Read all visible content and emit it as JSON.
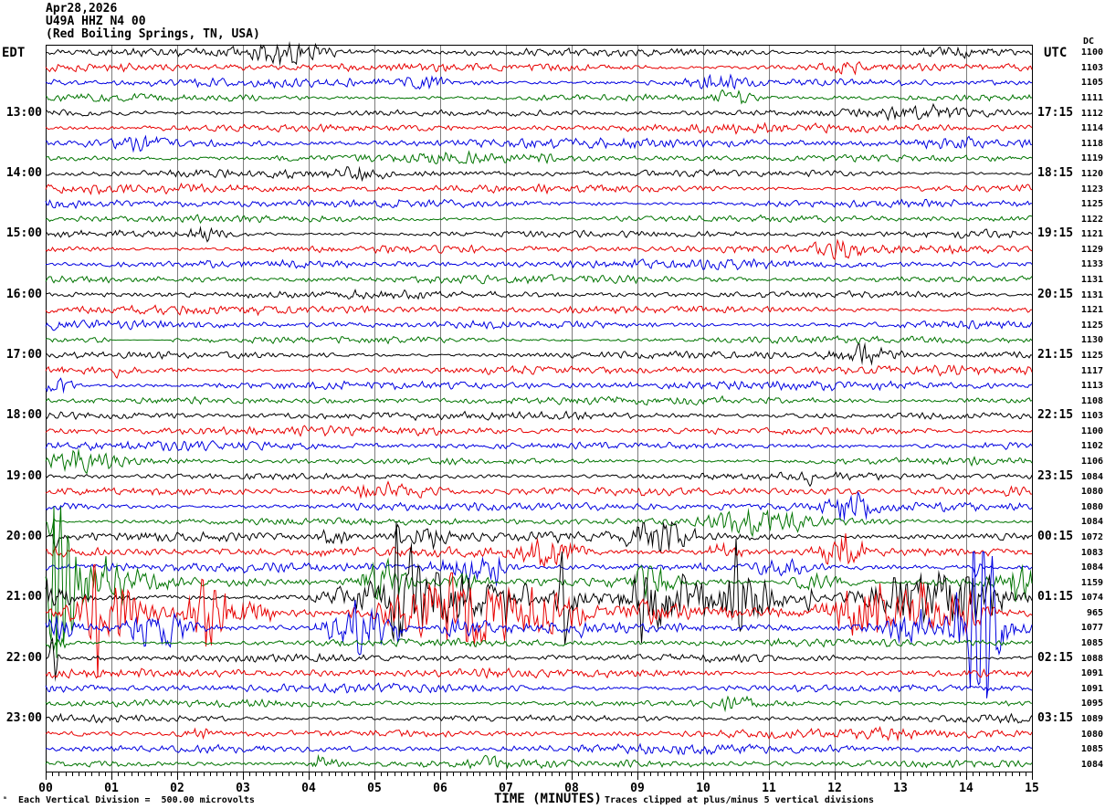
{
  "title": {
    "date": "Apr28,2026",
    "station": "U49A HHZ N4 00",
    "location": "(Red Boiling Springs, TN, USA)"
  },
  "header": {
    "left_tz": "EDT",
    "right_tz": "UTC",
    "dc_label": "DC"
  },
  "footer": {
    "scale_note": "Each Vertical Division =  500.00 microvolts",
    "axis_title": "TIME (MINUTES)",
    "clip_note": "Traces clipped at plus/minus 5 vertical divisions",
    "corner_mark": "ₘ"
  },
  "x_axis": {
    "labels": [
      "00",
      "01",
      "02",
      "03",
      "04",
      "05",
      "06",
      "07",
      "08",
      "09",
      "10",
      "11",
      "12",
      "13",
      "14",
      "15"
    ],
    "minutes": 15,
    "minor_per_major": 10,
    "title": "TIME (MINUTES)"
  },
  "colors": {
    "trace_cycle": [
      "#000000",
      "#e80000",
      "#0000e0",
      "#007400"
    ],
    "grid": "#7d7d7d",
    "border": "#000000",
    "background": "#ffffff"
  },
  "chart_data": {
    "type": "line",
    "kind": "seismogram-helicorder",
    "x_range_minutes": [
      0,
      15
    ],
    "minutes_per_line": 15,
    "rows_count": 48,
    "clip_divisions": 5,
    "microvolts_per_division": 500.0,
    "rows": [
      {
        "dc": 1100,
        "bursts": [
          [
            3.6,
            0.4,
            7
          ],
          [
            13.8,
            0.4,
            3
          ]
        ]
      },
      {
        "dc": 1103,
        "bursts": [
          [
            12.2,
            0.3,
            3.5
          ]
        ]
      },
      {
        "dc": 1105,
        "bursts": [
          [
            5.8,
            0.2,
            4
          ],
          [
            10.2,
            0.25,
            4
          ]
        ]
      },
      {
        "dc": 1111,
        "bursts": [
          [
            10.45,
            0.2,
            5
          ]
        ]
      },
      {
        "dc": 1112,
        "edt": "13:00",
        "utc": "17:15",
        "bursts": [
          [
            13.3,
            0.5,
            3
          ]
        ]
      },
      {
        "dc": 1114
      },
      {
        "dc": 1118,
        "bursts": [
          [
            1.4,
            0.25,
            4
          ],
          [
            13.7,
            0.3,
            3
          ]
        ]
      },
      {
        "dc": 1119,
        "bursts": [
          [
            6.5,
            0.8,
            1.5
          ]
        ]
      },
      {
        "dc": 1120,
        "edt": "14:00",
        "utc": "18:15",
        "bursts": [
          [
            4.8,
            0.25,
            3
          ]
        ]
      },
      {
        "dc": 1123
      },
      {
        "dc": 1125
      },
      {
        "dc": 1122
      },
      {
        "dc": 1121,
        "edt": "15:00",
        "utc": "19:15",
        "bursts": [
          [
            2.45,
            0.2,
            4
          ]
        ]
      },
      {
        "dc": 1129,
        "bursts": [
          [
            12.15,
            0.25,
            5
          ]
        ]
      },
      {
        "dc": 1133
      },
      {
        "dc": 1131
      },
      {
        "dc": 1131,
        "edt": "16:00",
        "utc": "20:15"
      },
      {
        "dc": 1121
      },
      {
        "dc": 1125
      },
      {
        "dc": 1130,
        "flat": [
          [
            1.0,
            1.9
          ]
        ]
      },
      {
        "dc": 1125,
        "edt": "17:00",
        "utc": "21:15",
        "bursts": [
          [
            12.4,
            0.35,
            6
          ]
        ]
      },
      {
        "dc": 1117,
        "spikes": [
          [
            1.07,
            8
          ]
        ]
      },
      {
        "dc": 1113,
        "bursts": [
          [
            0.2,
            0.15,
            5
          ]
        ]
      },
      {
        "dc": 1108
      },
      {
        "dc": 1103,
        "edt": "18:00",
        "utc": "22:15"
      },
      {
        "dc": 1100
      },
      {
        "dc": 1102
      },
      {
        "dc": 1106,
        "bursts": [
          [
            0.5,
            0.5,
            5
          ]
        ]
      },
      {
        "dc": 1084,
        "edt": "19:00",
        "utc": "23:15",
        "spikes": [
          [
            11.62,
            10
          ]
        ]
      },
      {
        "dc": 1080,
        "bursts": [
          [
            5.2,
            0.5,
            5
          ]
        ]
      },
      {
        "dc": 1080,
        "bursts": [
          [
            12.3,
            0.3,
            7
          ]
        ]
      },
      {
        "dc": 1084,
        "bursts": [
          [
            10.6,
            0.3,
            7
          ],
          [
            11.3,
            0.3,
            4
          ]
        ],
        "spikes": [
          [
            0.07,
            18
          ]
        ]
      },
      {
        "dc": 1072,
        "edt": "20:00",
        "utc": "00:15",
        "base": 3,
        "bursts": [
          [
            4.4,
            0.15,
            5
          ],
          [
            5.9,
            0.2,
            6
          ],
          [
            9.3,
            0.35,
            8
          ]
        ],
        "spikes": [
          [
            0.15,
            14
          ],
          [
            5.35,
            -16
          ],
          [
            5.6,
            12
          ],
          [
            9.1,
            -14
          ]
        ]
      },
      {
        "dc": 1083,
        "base": 3,
        "bursts": [
          [
            7.6,
            0.3,
            8
          ],
          [
            10.3,
            0.2,
            5
          ],
          [
            12.1,
            0.2,
            12
          ]
        ],
        "spikes": [
          [
            12.05,
            20
          ]
        ]
      },
      {
        "dc": 1084,
        "base": 3,
        "bursts": [
          [
            6.5,
            0.35,
            8
          ],
          [
            11.2,
            0.25,
            5
          ]
        ],
        "spikes": [
          [
            6.85,
            14
          ],
          [
            14.15,
            12
          ]
        ]
      },
      {
        "dc": 1159,
        "base": 3,
        "bursts": [
          [
            0.7,
            0.5,
            15
          ],
          [
            5.15,
            0.25,
            14
          ],
          [
            6.4,
            0.2,
            6
          ],
          [
            9.2,
            0.25,
            9
          ],
          [
            11.75,
            0.25,
            6
          ],
          [
            14.78,
            0.15,
            12
          ]
        ],
        "spikes": [
          [
            0.08,
            82
          ],
          [
            0.12,
            -82
          ],
          [
            0.17,
            80
          ],
          [
            0.22,
            -82
          ],
          [
            0.28,
            66
          ],
          [
            0.33,
            -50
          ],
          [
            0.4,
            30
          ]
        ]
      },
      {
        "dc": 1074,
        "edt": "21:00",
        "utc": "01:15",
        "base": 3,
        "bursts": [
          [
            0.1,
            0.15,
            10
          ],
          [
            4.45,
            0.2,
            6
          ],
          [
            5.6,
            0.5,
            16
          ],
          [
            6.4,
            0.5,
            8
          ],
          [
            8.0,
            0.25,
            10
          ],
          [
            9.2,
            0.35,
            20
          ],
          [
            9.9,
            0.5,
            7
          ],
          [
            10.7,
            0.3,
            12
          ],
          [
            12.9,
            0.3,
            10
          ],
          [
            13.6,
            0.4,
            12
          ],
          [
            14.2,
            0.3,
            14
          ]
        ],
        "spikes": [
          [
            5.28,
            82
          ],
          [
            5.33,
            -82
          ],
          [
            5.42,
            40
          ],
          [
            5.55,
            -45
          ],
          [
            7.0,
            25
          ],
          [
            7.3,
            -15
          ],
          [
            7.85,
            -65
          ],
          [
            7.9,
            30
          ],
          [
            9.05,
            45
          ],
          [
            10.5,
            -70
          ],
          [
            10.56,
            35
          ],
          [
            11.6,
            18
          ],
          [
            14.25,
            -30
          ]
        ]
      },
      {
        "dc": 965,
        "base": 3.2,
        "bursts": [
          [
            0.95,
            0.4,
            20
          ],
          [
            2.45,
            0.2,
            22
          ],
          [
            3.0,
            0.3,
            8
          ],
          [
            5.9,
            0.5,
            25
          ],
          [
            6.8,
            0.4,
            12
          ],
          [
            7.6,
            0.4,
            15
          ],
          [
            9.2,
            0.3,
            6
          ],
          [
            12.5,
            0.4,
            18
          ],
          [
            13.4,
            0.25,
            15
          ],
          [
            14.0,
            0.2,
            10
          ]
        ],
        "spikes": [
          [
            0.7,
            50
          ],
          [
            0.73,
            -82
          ],
          [
            0.78,
            35
          ],
          [
            2.5,
            35
          ],
          [
            5.62,
            -45
          ],
          [
            6.35,
            -30
          ],
          [
            7.45,
            -25
          ],
          [
            12.6,
            -35
          ],
          [
            13.35,
            -30
          ]
        ]
      },
      {
        "dc": 1077,
        "base": 3,
        "bursts": [
          [
            0.2,
            0.15,
            6
          ],
          [
            1.7,
            0.3,
            12
          ],
          [
            4.75,
            0.35,
            16
          ],
          [
            6.4,
            0.25,
            5
          ],
          [
            13.15,
            0.3,
            12
          ],
          [
            14.25,
            0.25,
            30
          ]
        ],
        "spikes": [
          [
            5.35,
            12
          ],
          [
            8.15,
            10
          ],
          [
            13.85,
            -25
          ],
          [
            14.05,
            70
          ],
          [
            14.12,
            -82
          ],
          [
            14.2,
            82
          ],
          [
            14.27,
            -82
          ],
          [
            14.33,
            75
          ],
          [
            14.4,
            -55
          ],
          [
            14.48,
            35
          ]
        ]
      },
      {
        "dc": 1085,
        "bursts": [
          [
            0.15,
            0.1,
            5
          ]
        ]
      },
      {
        "dc": 1088,
        "edt": "22:00",
        "utc": "02:15",
        "spikes": [
          [
            0.1,
            -28
          ],
          [
            0.14,
            16
          ]
        ]
      },
      {
        "dc": 1091
      },
      {
        "dc": 1091
      },
      {
        "dc": 1095,
        "bursts": [
          [
            10.5,
            0.2,
            4
          ]
        ]
      },
      {
        "dc": 1089,
        "edt": "23:00",
        "utc": "03:15"
      },
      {
        "dc": 1080,
        "bursts": [
          [
            2.3,
            0.15,
            4
          ],
          [
            12.8,
            0.2,
            3
          ]
        ]
      },
      {
        "dc": 1085
      },
      {
        "dc": 1084,
        "bursts": [
          [
            4.2,
            0.15,
            5
          ],
          [
            6.8,
            0.2,
            3
          ]
        ]
      }
    ]
  }
}
